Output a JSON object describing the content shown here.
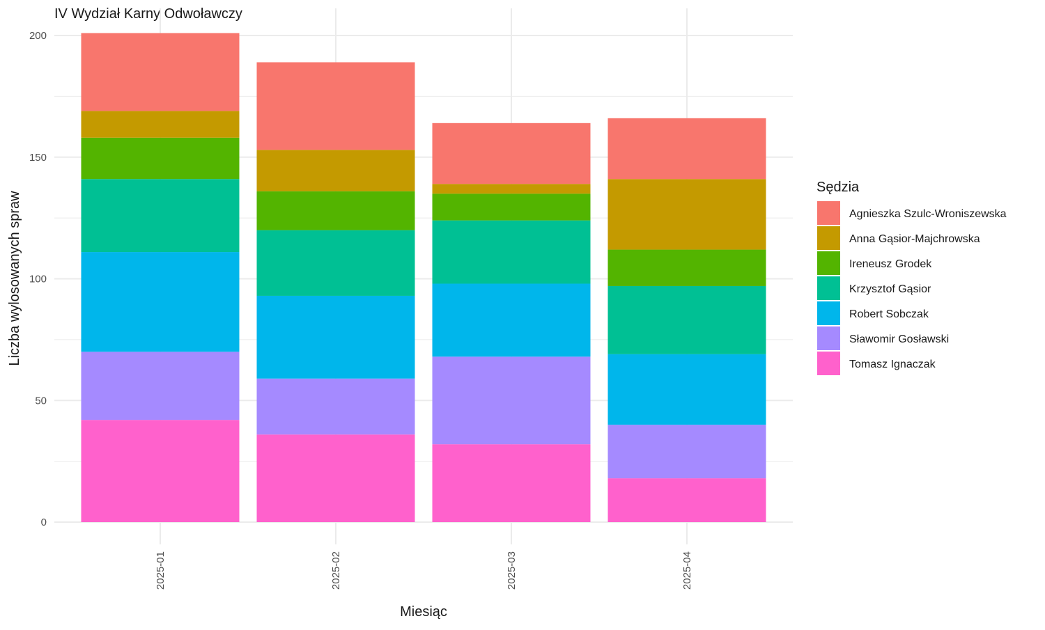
{
  "chart_data": {
    "type": "bar",
    "stacked": true,
    "title": "IV Wydział Karny Odwoławczy",
    "xlabel": "Miesiąc",
    "ylabel": "Liczba wylosowanych spraw",
    "categories": [
      "2025-01",
      "2025-02",
      "2025-03",
      "2025-04"
    ],
    "ylim": [
      0,
      200
    ],
    "yticks": [
      0,
      50,
      100,
      150,
      200
    ],
    "grid": true,
    "legend": {
      "title": "Sędzia",
      "position": "right"
    },
    "series": [
      {
        "name": "Tomasz Ignaczak",
        "color": "#FF61CC",
        "values": [
          42,
          36,
          32,
          18
        ]
      },
      {
        "name": "Sławomir Gosławski",
        "color": "#A58AFF",
        "values": [
          28,
          23,
          36,
          22
        ]
      },
      {
        "name": "Robert Sobczak",
        "color": "#00B6EB",
        "values": [
          41,
          34,
          30,
          29
        ]
      },
      {
        "name": "Krzysztof Gąsior",
        "color": "#00C094",
        "values": [
          30,
          27,
          26,
          28
        ]
      },
      {
        "name": "Ireneusz Grodek",
        "color": "#53B400",
        "values": [
          17,
          16,
          11,
          15
        ]
      },
      {
        "name": "Anna Gąsior-Majchrowska",
        "color": "#C49A00",
        "values": [
          11,
          17,
          4,
          29
        ]
      },
      {
        "name": "Agnieszka Szulc-Wroniszewska",
        "color": "#F8766D",
        "values": [
          32,
          36,
          25,
          25
        ]
      }
    ]
  }
}
